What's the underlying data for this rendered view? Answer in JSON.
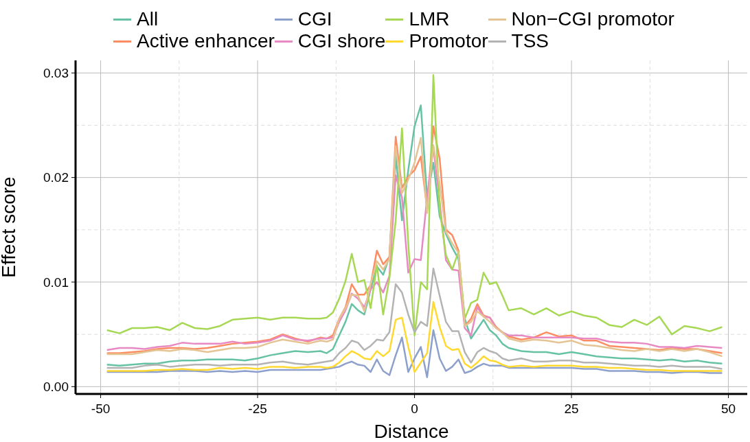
{
  "chart_data": {
    "type": "line",
    "xlabel": "Distance",
    "ylabel": "Effect score",
    "x": [
      -49,
      -47,
      -45,
      -43,
      -41,
      -39,
      -37,
      -35,
      -33,
      -31,
      -29,
      -27,
      -25,
      -23,
      -21,
      -19,
      -17,
      -15,
      -14,
      -13,
      -12,
      -11,
      -10,
      -9,
      -8,
      -7,
      -6,
      -5,
      -4,
      -3,
      -2,
      -1,
      0,
      1,
      2,
      3,
      4,
      5,
      6,
      7,
      8,
      9,
      10,
      11,
      12,
      13,
      14,
      15,
      17,
      19,
      21,
      23,
      25,
      27,
      29,
      31,
      33,
      35,
      37,
      39,
      41,
      43,
      45,
      47,
      49
    ],
    "series": [
      {
        "name": "All",
        "color": "#66c2a5",
        "values": [
          0.0021,
          0.002,
          0.0021,
          0.0022,
          0.0022,
          0.0024,
          0.0025,
          0.0025,
          0.0026,
          0.0026,
          0.0026,
          0.0025,
          0.0027,
          0.003,
          0.0032,
          0.0034,
          0.0033,
          0.0034,
          0.0032,
          0.0036,
          0.0049,
          0.0062,
          0.0079,
          0.0073,
          0.0069,
          0.0093,
          0.0115,
          0.0107,
          0.0124,
          0.022,
          0.0159,
          0.0207,
          0.0249,
          0.0269,
          0.0181,
          0.0214,
          0.0163,
          0.0146,
          0.0133,
          0.0122,
          0.0065,
          0.0046,
          0.0055,
          0.0064,
          0.0054,
          0.0049,
          0.0041,
          0.0037,
          0.0034,
          0.0033,
          0.0033,
          0.0031,
          0.0033,
          0.0031,
          0.0029,
          0.0028,
          0.0027,
          0.0027,
          0.0026,
          0.0025,
          0.0026,
          0.0024,
          0.0025,
          0.0023,
          0.0022
        ]
      },
      {
        "name": "Active enhancer",
        "color": "#fc8d62",
        "values": [
          0.0032,
          0.0032,
          0.0033,
          0.0034,
          0.0036,
          0.0037,
          0.0037,
          0.0036,
          0.0037,
          0.0039,
          0.0041,
          0.0042,
          0.0043,
          0.0045,
          0.005,
          0.0046,
          0.0043,
          0.0047,
          0.0046,
          0.0049,
          0.0065,
          0.0076,
          0.0098,
          0.0088,
          0.0088,
          0.0097,
          0.013,
          0.0117,
          0.0124,
          0.0239,
          0.019,
          0.0201,
          0.0207,
          0.022,
          0.017,
          0.0249,
          0.0218,
          0.015,
          0.0145,
          0.013,
          0.0058,
          0.0065,
          0.0079,
          0.0068,
          0.0066,
          0.0057,
          0.0052,
          0.0048,
          0.0045,
          0.0047,
          0.0052,
          0.0048,
          0.0049,
          0.0044,
          0.0044,
          0.0039,
          0.0038,
          0.0037,
          0.0036,
          0.0035,
          0.0037,
          0.0036,
          0.0036,
          0.0034,
          0.0032
        ]
      },
      {
        "name": "CGI",
        "color": "#8da0cb",
        "values": [
          0.0014,
          0.0014,
          0.0014,
          0.0014,
          0.0014,
          0.0015,
          0.0015,
          0.0015,
          0.0014,
          0.0015,
          0.0014,
          0.0015,
          0.0014,
          0.0016,
          0.0016,
          0.0016,
          0.0016,
          0.0016,
          0.0017,
          0.0018,
          0.0019,
          0.0022,
          0.0024,
          0.0021,
          0.002,
          0.0014,
          0.0026,
          0.0015,
          0.0011,
          0.003,
          0.0047,
          0.0014,
          0.0027,
          0.0038,
          0.0009,
          0.0054,
          0.0027,
          0.0015,
          0.0019,
          0.0026,
          0.0013,
          0.0015,
          0.0019,
          0.0022,
          0.002,
          0.002,
          0.002,
          0.0018,
          0.0018,
          0.0018,
          0.0018,
          0.0018,
          0.0018,
          0.0017,
          0.0017,
          0.0015,
          0.0015,
          0.0015,
          0.0014,
          0.0014,
          0.0013,
          0.0014,
          0.0014,
          0.0013,
          0.0013
        ]
      },
      {
        "name": "CGI shore",
        "color": "#e78ac3",
        "values": [
          0.0035,
          0.0037,
          0.0037,
          0.0036,
          0.0038,
          0.0039,
          0.0042,
          0.0041,
          0.0041,
          0.0041,
          0.0043,
          0.0041,
          0.0042,
          0.0044,
          0.0049,
          0.0045,
          0.0044,
          0.0046,
          0.0046,
          0.0047,
          0.0062,
          0.0073,
          0.0089,
          0.0084,
          0.0076,
          0.0093,
          0.01,
          0.009,
          0.0106,
          0.0202,
          0.0181,
          0.0109,
          0.0122,
          0.0121,
          0.0181,
          0.0229,
          0.0177,
          0.0121,
          0.0112,
          0.0111,
          0.0056,
          0.0049,
          0.0076,
          0.0067,
          0.0066,
          0.0056,
          0.0052,
          0.0049,
          0.0049,
          0.0047,
          0.0047,
          0.0047,
          0.0047,
          0.0046,
          0.0046,
          0.0043,
          0.0042,
          0.0042,
          0.0041,
          0.0038,
          0.0038,
          0.0037,
          0.0039,
          0.0038,
          0.0037
        ]
      },
      {
        "name": "LMR",
        "color": "#a6d854",
        "values": [
          0.0054,
          0.0051,
          0.0056,
          0.0056,
          0.0057,
          0.0054,
          0.0061,
          0.0056,
          0.0055,
          0.0058,
          0.0064,
          0.0065,
          0.0066,
          0.0064,
          0.0066,
          0.0066,
          0.0065,
          0.0065,
          0.0066,
          0.0071,
          0.0084,
          0.0101,
          0.0127,
          0.01,
          0.0102,
          0.0075,
          0.0116,
          0.0069,
          0.0104,
          0.0159,
          0.0247,
          0.0137,
          0.0049,
          0.01,
          0.0093,
          0.0298,
          0.017,
          0.0126,
          0.0112,
          0.0129,
          0.0065,
          0.008,
          0.0083,
          0.0109,
          0.0098,
          0.01,
          0.0087,
          0.0073,
          0.0075,
          0.0069,
          0.0075,
          0.0068,
          0.0072,
          0.0068,
          0.0066,
          0.0059,
          0.0057,
          0.0064,
          0.0059,
          0.0067,
          0.005,
          0.0058,
          0.0056,
          0.0053,
          0.0057
        ]
      },
      {
        "name": "Promotor",
        "color": "#ffd92f",
        "values": [
          0.0015,
          0.0015,
          0.0015,
          0.0015,
          0.0016,
          0.0016,
          0.0017,
          0.0016,
          0.0016,
          0.0018,
          0.0017,
          0.0018,
          0.0017,
          0.0019,
          0.0019,
          0.0018,
          0.0019,
          0.0019,
          0.0018,
          0.0019,
          0.0023,
          0.0029,
          0.0034,
          0.0031,
          0.0027,
          0.0026,
          0.0034,
          0.0029,
          0.0034,
          0.0064,
          0.0066,
          0.0038,
          0.0014,
          0.0023,
          0.0032,
          0.0081,
          0.0057,
          0.0039,
          0.0035,
          0.0036,
          0.0022,
          0.0018,
          0.0023,
          0.0029,
          0.0025,
          0.0024,
          0.0021,
          0.0019,
          0.002,
          0.0019,
          0.002,
          0.002,
          0.002,
          0.0019,
          0.0019,
          0.0018,
          0.0018,
          0.0017,
          0.0016,
          0.0016,
          0.0015,
          0.0015,
          0.0015,
          0.0015,
          0.0015
        ]
      },
      {
        "name": "Non−CGI promotor",
        "color": "#e5c494",
        "values": [
          0.0031,
          0.0031,
          0.0031,
          0.0033,
          0.0035,
          0.0034,
          0.0036,
          0.0035,
          0.0033,
          0.0035,
          0.0037,
          0.0037,
          0.0038,
          0.0042,
          0.0045,
          0.0043,
          0.0041,
          0.0044,
          0.0043,
          0.0045,
          0.0065,
          0.0075,
          0.0088,
          0.0087,
          0.0072,
          0.0098,
          0.012,
          0.0112,
          0.0122,
          0.023,
          0.0185,
          0.0198,
          0.0214,
          0.0238,
          0.0166,
          0.0231,
          0.0194,
          0.0148,
          0.0137,
          0.0128,
          0.0058,
          0.0062,
          0.0072,
          0.0067,
          0.0062,
          0.0056,
          0.0052,
          0.0046,
          0.0043,
          0.0045,
          0.0044,
          0.0042,
          0.0044,
          0.004,
          0.0039,
          0.0037,
          0.0035,
          0.0034,
          0.0036,
          0.0034,
          0.0036,
          0.0034,
          0.0036,
          0.0033,
          0.0029
        ]
      },
      {
        "name": "TSS",
        "color": "#b3b3b3",
        "values": [
          0.0018,
          0.0018,
          0.0018,
          0.002,
          0.0021,
          0.0019,
          0.002,
          0.0021,
          0.0021,
          0.002,
          0.0021,
          0.0021,
          0.0021,
          0.0023,
          0.0024,
          0.0022,
          0.0021,
          0.0023,
          0.0024,
          0.0025,
          0.0032,
          0.0037,
          0.0044,
          0.0042,
          0.0035,
          0.0039,
          0.0045,
          0.0044,
          0.0052,
          0.0098,
          0.009,
          0.0069,
          0.0052,
          0.0062,
          0.0058,
          0.0113,
          0.0087,
          0.0062,
          0.0053,
          0.0053,
          0.0033,
          0.0023,
          0.0033,
          0.0037,
          0.0034,
          0.0032,
          0.0027,
          0.0025,
          0.0027,
          0.0024,
          0.0024,
          0.0025,
          0.0025,
          0.0023,
          0.0023,
          0.0022,
          0.0021,
          0.002,
          0.002,
          0.0019,
          0.002,
          0.0019,
          0.0019,
          0.0019,
          0.0017
        ]
      }
    ],
    "xlim": [
      -54,
      53
    ],
    "xticks": [
      -50,
      {
        "value": -37.5,
        "label": null
      },
      -25,
      {
        "value": -12.5,
        "label": null
      },
      0,
      {
        "value": 12.5,
        "label": null
      },
      25,
      {
        "value": 37.5,
        "label": null
      },
      50
    ],
    "ylim": [
      -0.0007,
      0.0312
    ],
    "yticks": [
      {
        "value": 0,
        "label": "0.00"
      },
      {
        "value": 0.005,
        "label": null
      },
      {
        "value": 0.01,
        "label": "0.01"
      },
      {
        "value": 0.015,
        "label": null
      },
      {
        "value": 0.02,
        "label": "0.02"
      },
      {
        "value": 0.025,
        "label": null
      },
      {
        "value": 0.03,
        "label": "0.03"
      }
    ],
    "grid": true,
    "legend": "top",
    "marker": "none",
    "line_style": "solid"
  }
}
